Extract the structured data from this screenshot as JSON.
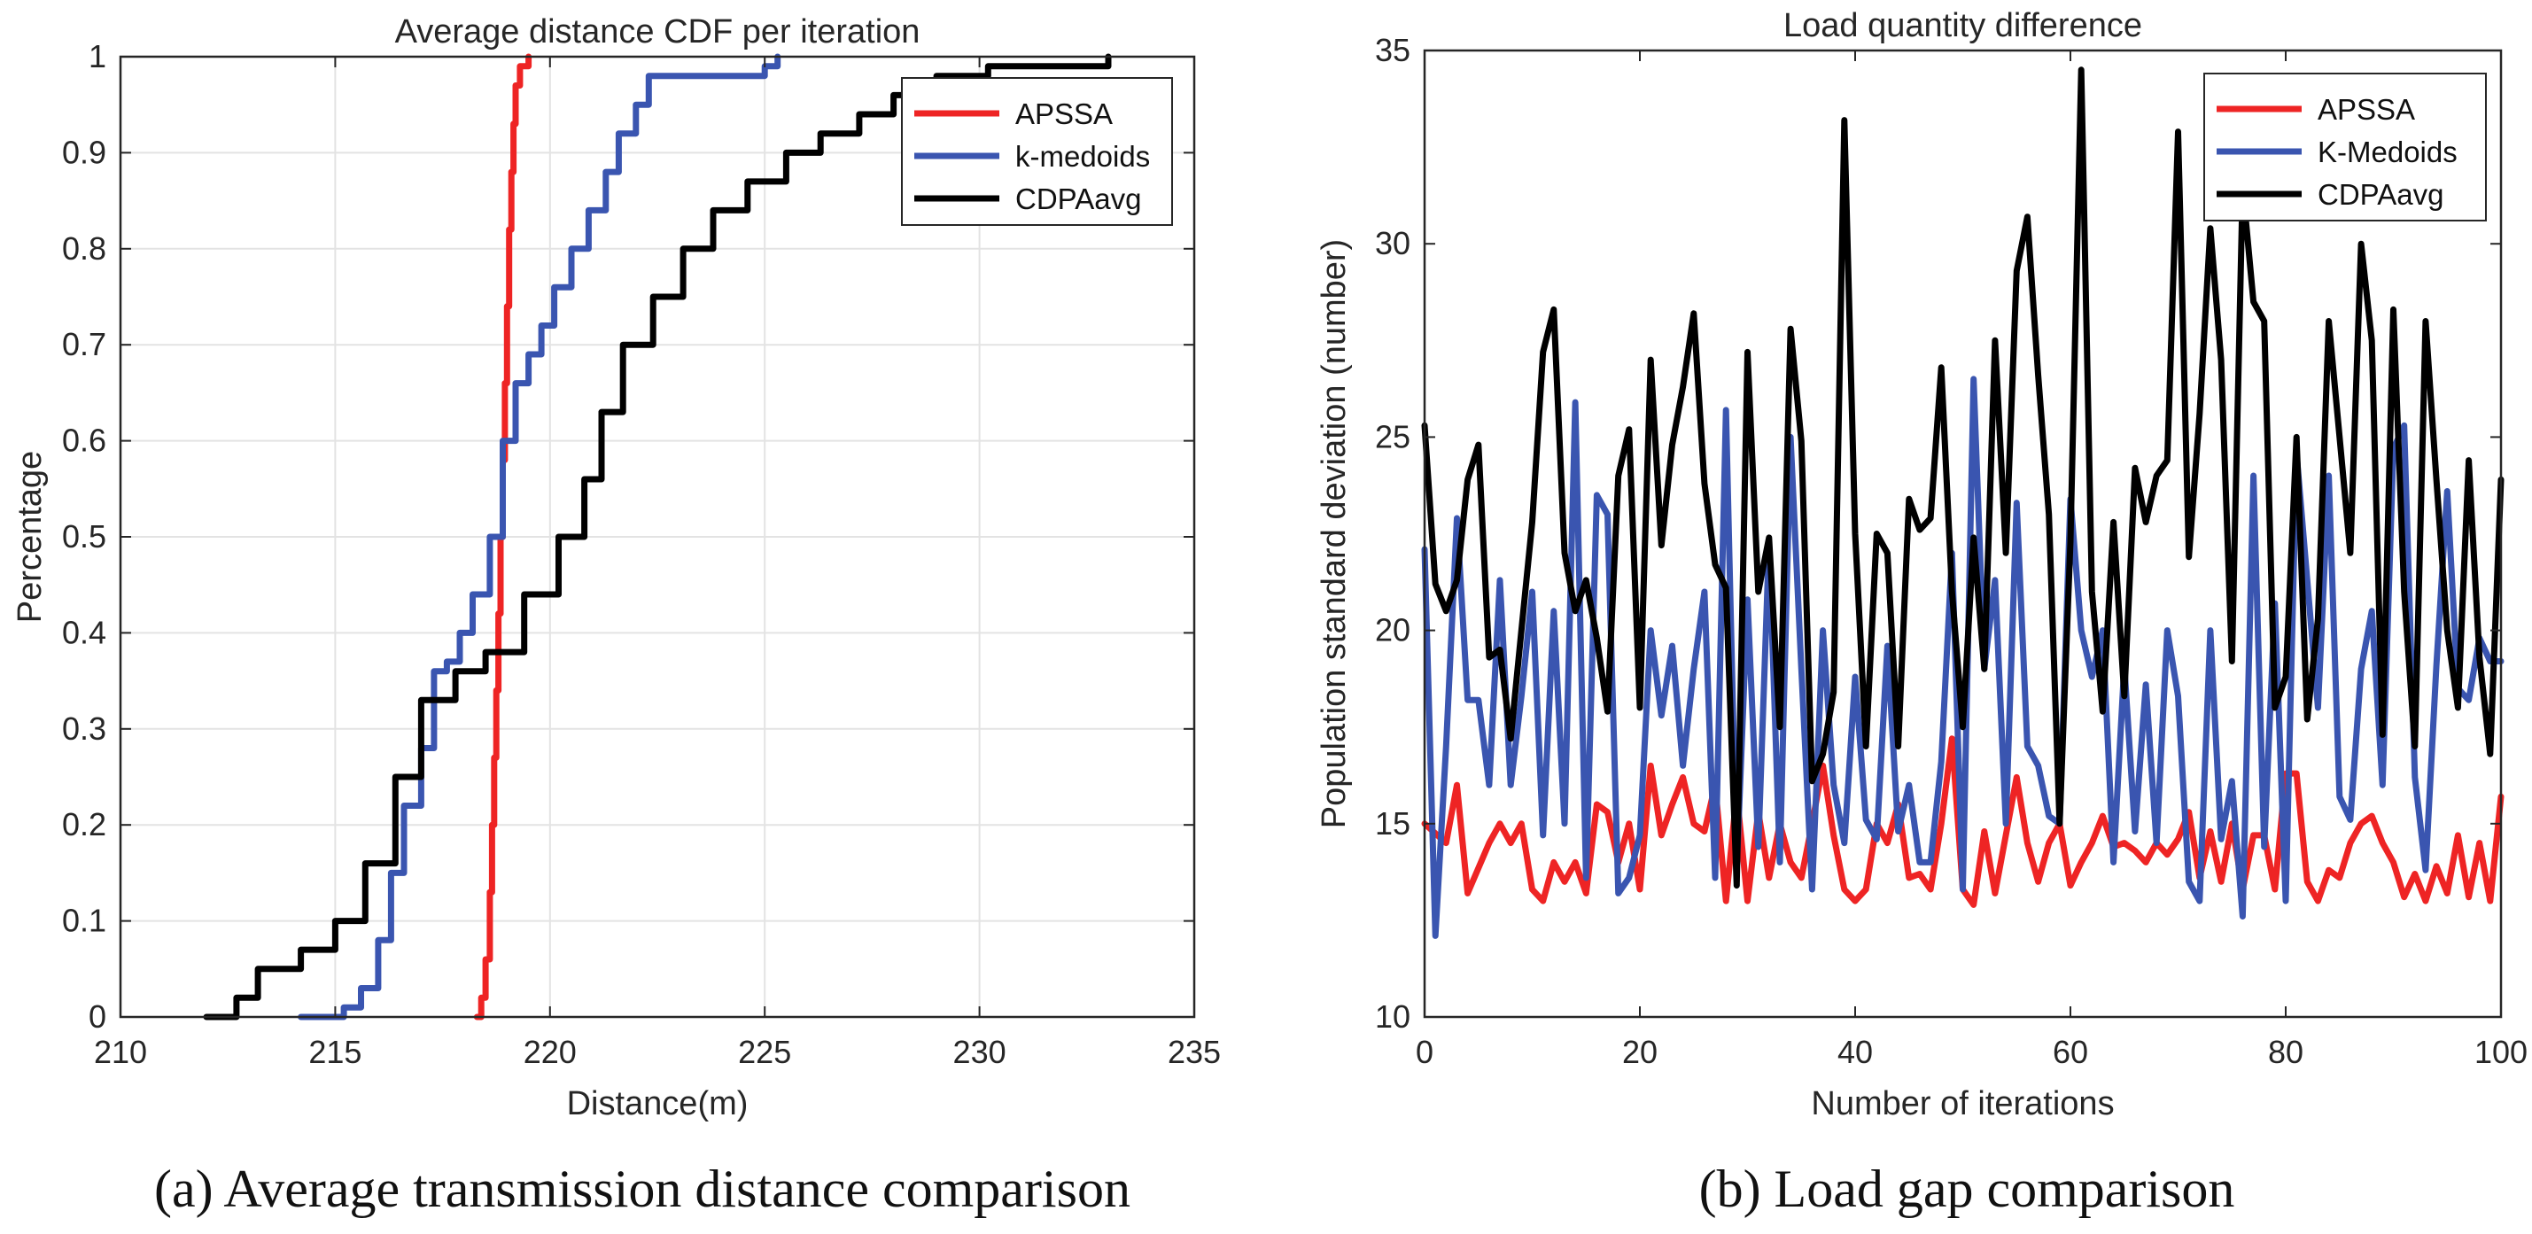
{
  "colors": {
    "red": "#ee2424",
    "blue": "#3a55b0",
    "black": "#000000",
    "grid": "#e3e3e3",
    "axis": "#262626"
  },
  "captions": {
    "a": "(a) Average transmission distance comparison",
    "b": "(b) Load gap comparison"
  },
  "chart_data": [
    {
      "type": "line",
      "title": "Average distance CDF per iteration",
      "xlabel": "Distance(m)",
      "ylabel": "Percentage",
      "xlim": [
        210,
        235
      ],
      "ylim": [
        0,
        1
      ],
      "xticks": [
        "210",
        "215",
        "220",
        "225",
        "230",
        "235"
      ],
      "yticks": [
        "0",
        "0.1",
        "0.2",
        "0.3",
        "0.4",
        "0.5",
        "0.6",
        "0.7",
        "0.8",
        "0.9",
        "1"
      ],
      "grid": true,
      "step": true,
      "legend_position": "top-right",
      "series": [
        {
          "name": "APSSA",
          "color": "red",
          "x": [
            218.3,
            218.4,
            218.5,
            218.6,
            218.65,
            218.7,
            218.75,
            218.8,
            218.85,
            218.9,
            218.95,
            219.0,
            219.05,
            219.1,
            219.15,
            219.2,
            219.3,
            219.5
          ],
          "y": [
            0,
            0.02,
            0.06,
            0.13,
            0.2,
            0.27,
            0.34,
            0.42,
            0.5,
            0.58,
            0.66,
            0.74,
            0.82,
            0.88,
            0.93,
            0.97,
            0.99,
            1.0
          ]
        },
        {
          "name": "k-medoids",
          "color": "blue",
          "x": [
            214.2,
            215.2,
            215.6,
            216.0,
            216.3,
            216.6,
            217.0,
            217.3,
            217.6,
            217.9,
            218.2,
            218.6,
            218.9,
            219.2,
            219.5,
            219.8,
            220.1,
            220.5,
            220.9,
            221.3,
            221.6,
            222.0,
            222.3,
            225.0,
            225.3
          ],
          "y": [
            0,
            0.01,
            0.03,
            0.08,
            0.15,
            0.22,
            0.28,
            0.36,
            0.37,
            0.4,
            0.44,
            0.5,
            0.6,
            0.66,
            0.69,
            0.72,
            0.76,
            0.8,
            0.84,
            0.88,
            0.92,
            0.95,
            0.98,
            0.99,
            1.0
          ]
        },
        {
          "name": "CDPAavg",
          "color": "black",
          "x": [
            212.0,
            212.7,
            213.2,
            214.2,
            215.0,
            215.7,
            216.4,
            217.0,
            217.8,
            218.5,
            219.4,
            220.2,
            220.8,
            221.2,
            221.7,
            222.4,
            223.1,
            223.8,
            224.6,
            225.5,
            226.3,
            227.2,
            228.0,
            229.0,
            230.2,
            233.0
          ],
          "y": [
            0,
            0.02,
            0.05,
            0.07,
            0.1,
            0.16,
            0.25,
            0.33,
            0.36,
            0.38,
            0.44,
            0.5,
            0.56,
            0.63,
            0.7,
            0.75,
            0.8,
            0.84,
            0.87,
            0.9,
            0.92,
            0.94,
            0.96,
            0.98,
            0.99,
            1.0
          ]
        }
      ]
    },
    {
      "type": "line",
      "title": "Load quantity difference",
      "xlabel": "Number of iterations",
      "ylabel": "Population standard deviation (number)",
      "xlim": [
        0,
        100
      ],
      "ylim": [
        10,
        35
      ],
      "xticks": [
        "0",
        "20",
        "40",
        "60",
        "80",
        "100"
      ],
      "yticks": [
        "10",
        "15",
        "20",
        "25",
        "30",
        "35"
      ],
      "grid": false,
      "legend_position": "top-right",
      "series": [
        {
          "name": "APSSA",
          "color": "red",
          "x": [
            0,
            2,
            3,
            4,
            6,
            7,
            8,
            9,
            10,
            11,
            12,
            13,
            14,
            15,
            16,
            17,
            18,
            19,
            20,
            21,
            22,
            23,
            24,
            25,
            26,
            27,
            28,
            29,
            30,
            31,
            32,
            33,
            34,
            35,
            36,
            37,
            38,
            39,
            40,
            41,
            42,
            43,
            44,
            45,
            46,
            47,
            48,
            49,
            50,
            51,
            52,
            53,
            54,
            55,
            56,
            57,
            58,
            59,
            60,
            61,
            62,
            63,
            64,
            65,
            66,
            67,
            68,
            69,
            70,
            71,
            72,
            73,
            74,
            75,
            76,
            77,
            78,
            79,
            80,
            81,
            82,
            83,
            84,
            85,
            86,
            87,
            88,
            89,
            90,
            91,
            92,
            93,
            94,
            95,
            96,
            97,
            98,
            99,
            100
          ],
          "y": [
            15.0,
            14.5,
            16.0,
            13.2,
            14.5,
            15.0,
            14.5,
            15.0,
            13.3,
            13.0,
            14.0,
            13.5,
            14.0,
            13.2,
            15.5,
            15.3,
            14.0,
            15.0,
            13.3,
            16.5,
            14.7,
            15.5,
            16.2,
            15.0,
            14.8,
            16.0,
            13.0,
            15.8,
            13.0,
            15.3,
            13.6,
            15.0,
            14.0,
            13.6,
            15.0,
            16.5,
            14.7,
            13.3,
            13.0,
            13.3,
            15.0,
            14.5,
            15.5,
            13.6,
            13.7,
            13.3,
            15.0,
            17.2,
            13.3,
            12.9,
            14.8,
            13.2,
            14.7,
            16.2,
            14.5,
            13.5,
            14.5,
            15.0,
            13.4,
            14.0,
            14.5,
            15.2,
            14.4,
            14.5,
            14.3,
            14.0,
            14.5,
            14.2,
            14.6,
            15.3,
            13.6,
            14.8,
            13.5,
            15.0,
            13.3,
            14.7,
            14.7,
            13.3,
            16.3,
            16.3,
            13.5,
            13.0,
            13.8,
            13.6,
            14.5,
            15.0,
            15.2,
            14.5,
            14.0,
            13.1,
            13.7,
            13.0,
            13.9,
            13.2,
            14.7,
            13.1,
            14.5,
            13.0,
            15.7
          ]
        },
        {
          "name": "K-Medoids",
          "color": "blue",
          "x": [
            0,
            1,
            2,
            3,
            4,
            5,
            6,
            7,
            8,
            9,
            10,
            11,
            12,
            13,
            14,
            15,
            16,
            17,
            18,
            19,
            20,
            21,
            22,
            23,
            24,
            25,
            26,
            27,
            28,
            29,
            30,
            31,
            32,
            33,
            34,
            35,
            36,
            37,
            38,
            39,
            40,
            41,
            42,
            43,
            44,
            45,
            46,
            47,
            48,
            49,
            50,
            51,
            52,
            53,
            54,
            55,
            56,
            57,
            58,
            59,
            60,
            61,
            62,
            63,
            64,
            65,
            66,
            67,
            68,
            69,
            70,
            71,
            72,
            73,
            74,
            75,
            76,
            77,
            78,
            79,
            80,
            81,
            82,
            83,
            84,
            85,
            86,
            87,
            88,
            89,
            90,
            91,
            92,
            93,
            94,
            95,
            96,
            97,
            98,
            99,
            100
          ],
          "y": [
            22.1,
            12.1,
            17.0,
            22.9,
            18.2,
            18.2,
            16.0,
            21.3,
            16.0,
            18.3,
            21.0,
            14.7,
            20.5,
            15.0,
            25.9,
            13.6,
            23.5,
            23.0,
            13.2,
            13.6,
            14.7,
            20.0,
            17.8,
            19.6,
            16.5,
            19.0,
            21.0,
            13.6,
            25.7,
            13.8,
            20.8,
            14.4,
            22.3,
            14.0,
            25.0,
            19.0,
            13.3,
            20.0,
            16.0,
            14.5,
            18.8,
            15.1,
            14.6,
            19.6,
            14.8,
            16.0,
            14.0,
            14.0,
            16.6,
            22.0,
            13.3,
            26.5,
            19.0,
            21.3,
            15.0,
            23.3,
            17.0,
            16.5,
            15.2,
            15.0,
            23.4,
            20.0,
            18.8,
            20.0,
            14.0,
            19.1,
            14.8,
            18.6,
            14.5,
            20.0,
            18.3,
            13.5,
            13.0,
            20.0,
            14.6,
            16.1,
            12.6,
            24.0,
            14.4,
            20.7,
            13.0,
            24.6,
            21.3,
            18.0,
            24.0,
            15.7,
            15.1,
            19.0,
            20.5,
            16.0,
            24.7,
            25.3,
            16.2,
            13.8,
            19.1,
            23.6,
            18.5,
            18.2,
            19.8,
            19.2,
            19.2
          ]
        },
        {
          "name": "CDPAavg",
          "color": "black",
          "x": [
            0,
            1,
            2,
            3,
            4,
            5,
            6,
            7,
            8,
            9,
            10,
            11,
            12,
            13,
            14,
            15,
            16,
            17,
            18,
            19,
            20,
            21,
            22,
            23,
            24,
            25,
            26,
            27,
            28,
            29,
            30,
            31,
            32,
            33,
            34,
            35,
            36,
            37,
            38,
            39,
            40,
            41,
            42,
            43,
            44,
            45,
            46,
            47,
            48,
            49,
            50,
            51,
            52,
            53,
            54,
            55,
            56,
            57,
            58,
            59,
            60,
            61,
            62,
            63,
            64,
            65,
            66,
            67,
            68,
            69,
            70,
            71,
            72,
            73,
            74,
            75,
            76,
            77,
            78,
            79,
            80,
            81,
            82,
            83,
            84,
            85,
            86,
            87,
            88,
            89,
            90,
            91,
            92,
            93,
            94,
            95,
            96,
            97,
            98,
            99,
            100
          ],
          "y": [
            25.3,
            21.2,
            20.5,
            21.3,
            23.9,
            24.8,
            19.3,
            19.5,
            17.2,
            20.0,
            22.8,
            27.2,
            28.3,
            22.0,
            20.5,
            21.3,
            19.8,
            17.9,
            24.0,
            25.2,
            18.0,
            27.0,
            22.2,
            24.8,
            26.3,
            28.2,
            23.8,
            21.7,
            21.1,
            13.4,
            27.2,
            21.0,
            22.4,
            17.5,
            27.8,
            24.9,
            16.1,
            16.8,
            18.4,
            33.2,
            22.5,
            17.0,
            22.5,
            22.0,
            17.0,
            23.4,
            22.6,
            22.9,
            26.8,
            21.0,
            17.5,
            22.4,
            19.0,
            27.5,
            22.0,
            29.3,
            30.7,
            26.6,
            23.0,
            15.0,
            22.3,
            34.5,
            21.0,
            17.9,
            22.8,
            18.3,
            24.2,
            22.8,
            24.0,
            24.4,
            32.9,
            21.9,
            25.6,
            30.4,
            27.0,
            19.2,
            31.5,
            28.5,
            28.0,
            18.0,
            18.8,
            25.0,
            17.7,
            20.3,
            28.0,
            25.0,
            22.0,
            30.0,
            27.5,
            17.3,
            28.3,
            21.0,
            17.0,
            28.0,
            23.9,
            20.0,
            18.0,
            24.4,
            19.3,
            16.8,
            23.9
          ]
        }
      ]
    }
  ]
}
